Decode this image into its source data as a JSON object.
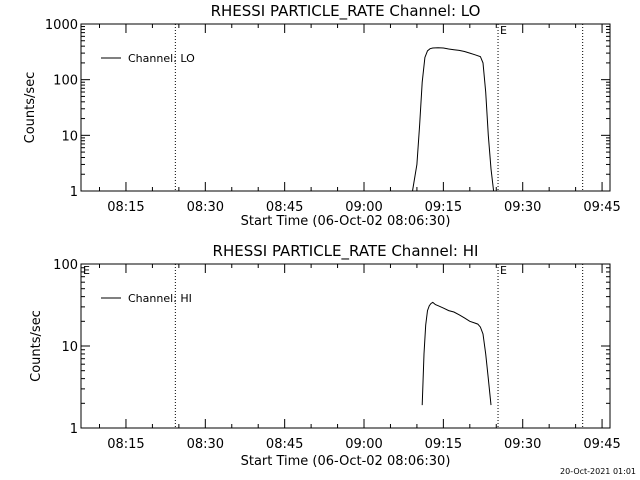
{
  "footer": {
    "timestamp": "20-Oct-2021 01:01"
  },
  "chart_data": [
    {
      "type": "line",
      "title": "RHESSI PARTICLE_RATE Channel: LO",
      "xlabel": "Start Time (06-Oct-02 08:06:30)",
      "ylabel": "Counts/sec",
      "yscale": "log",
      "ylim": [
        1,
        1000
      ],
      "xlim": [
        "08:06:30",
        "09:46:30"
      ],
      "yticks": [
        "1",
        "10",
        "100",
        "1000"
      ],
      "xticks": [
        "08:15",
        "08:30",
        "08:45",
        "09:00",
        "09:15",
        "09:30",
        "09:45"
      ],
      "legend": {
        "position": "top-left",
        "label": "Channel: LO"
      },
      "markers": [
        {
          "time": "08:24:20",
          "label": ""
        },
        {
          "time": "09:25:20",
          "label": "E"
        },
        {
          "time": "09:41:20",
          "label": ""
        }
      ],
      "series": [
        {
          "name": "Channel: LO",
          "x": [
            "09:09:10",
            "09:10:00",
            "09:10:30",
            "09:11:00",
            "09:11:30",
            "09:12:00",
            "09:12:30",
            "09:13:00",
            "09:14:00",
            "09:15:00",
            "09:16:00",
            "09:17:00",
            "09:18:00",
            "09:19:00",
            "09:20:00",
            "09:21:00",
            "09:22:00",
            "09:22:30",
            "09:23:00",
            "09:23:30",
            "09:24:00",
            "09:24:30"
          ],
          "y": [
            1,
            3,
            15,
            90,
            250,
            330,
            360,
            370,
            375,
            370,
            355,
            345,
            335,
            320,
            300,
            280,
            260,
            200,
            60,
            10,
            2.5,
            1
          ]
        }
      ]
    },
    {
      "type": "line",
      "title": "RHESSI PARTICLE_RATE Channel: HI",
      "xlabel": "Start Time (06-Oct-02 08:06:30)",
      "ylabel": "Counts/sec",
      "yscale": "log",
      "ylim": [
        1,
        100
      ],
      "xlim": [
        "08:06:30",
        "09:46:30"
      ],
      "yticks": [
        "1",
        "10",
        "100"
      ],
      "xticks": [
        "08:15",
        "08:30",
        "08:45",
        "09:00",
        "09:15",
        "09:30",
        "09:45"
      ],
      "legend": {
        "position": "top-left",
        "label": "Channel: HI"
      },
      "markers": [
        {
          "time": "08:06:30",
          "label": "E"
        },
        {
          "time": "08:24:20",
          "label": ""
        },
        {
          "time": "09:25:20",
          "label": "E"
        },
        {
          "time": "09:41:20",
          "label": ""
        }
      ],
      "series": [
        {
          "name": "Channel: HI",
          "x": [
            "09:11:00",
            "09:11:20",
            "09:11:40",
            "09:12:00",
            "09:12:20",
            "09:12:40",
            "09:13:00",
            "09:13:30",
            "09:14:00",
            "09:15:00",
            "09:16:00",
            "09:17:00",
            "09:18:00",
            "09:19:00",
            "09:20:00",
            "09:21:00",
            "09:21:30",
            "09:22:00",
            "09:22:30",
            "09:23:00",
            "09:23:30",
            "09:24:00"
          ],
          "y": [
            1.9,
            8,
            18,
            27,
            31,
            33,
            34,
            32,
            31,
            29,
            27,
            26,
            24,
            22,
            20,
            19,
            18.5,
            17,
            14,
            8,
            4,
            1.9
          ]
        }
      ]
    }
  ]
}
